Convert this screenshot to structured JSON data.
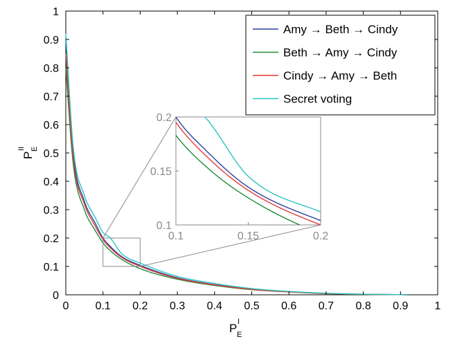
{
  "chart_data": {
    "type": "line",
    "title": "",
    "xlabel": {
      "main": "P",
      "sub": "E",
      "sup": "I"
    },
    "ylabel": {
      "main": "P",
      "sub": "E",
      "sup": "II"
    },
    "xlim": [
      0,
      1
    ],
    "ylim": [
      0,
      1
    ],
    "xticks": [
      "0",
      "0.1",
      "0.2",
      "0.3",
      "0.4",
      "0.5",
      "0.6",
      "0.7",
      "0.8",
      "0.9",
      "1"
    ],
    "yticks": [
      "0",
      "0.1",
      "0.2",
      "0.3",
      "0.4",
      "0.5",
      "0.6",
      "0.7",
      "0.8",
      "0.9",
      "1"
    ],
    "grid": false,
    "legend_position": "top-right",
    "series": [
      {
        "name": "Amy → Beth → Cindy",
        "color": "#2e3f9e",
        "x": [
          0.0,
          0.02,
          0.05,
          0.08,
          0.1,
          0.12,
          0.15,
          0.2,
          0.3,
          0.4,
          0.5,
          0.6,
          0.7,
          0.8,
          0.9,
          0.92
        ],
        "y": [
          0.9,
          0.5,
          0.33,
          0.25,
          0.2,
          0.17,
          0.135,
          0.104,
          0.06,
          0.036,
          0.02,
          0.011,
          0.005,
          0.002,
          0.0005,
          0.0
        ]
      },
      {
        "name": "Beth → Amy → Cindy",
        "color": "#1f8a3c",
        "x": [
          0.0,
          0.02,
          0.05,
          0.08,
          0.1,
          0.12,
          0.15,
          0.2,
          0.3,
          0.4,
          0.5,
          0.6,
          0.7,
          0.8,
          0.9,
          0.92
        ],
        "y": [
          0.8,
          0.46,
          0.3,
          0.225,
          0.183,
          0.155,
          0.125,
          0.092,
          0.055,
          0.033,
          0.018,
          0.01,
          0.004,
          0.0015,
          0.0004,
          0.0
        ]
      },
      {
        "name": "Cindy → Amy → Beth",
        "color": "#e23a32",
        "x": [
          0.0,
          0.02,
          0.05,
          0.08,
          0.1,
          0.12,
          0.15,
          0.2,
          0.3,
          0.4,
          0.5,
          0.6,
          0.7,
          0.8,
          0.9,
          0.92
        ],
        "y": [
          0.85,
          0.48,
          0.32,
          0.24,
          0.195,
          0.165,
          0.132,
          0.1,
          0.058,
          0.035,
          0.019,
          0.0105,
          0.0045,
          0.0018,
          0.0005,
          0.0
        ]
      },
      {
        "name": "Secret voting",
        "color": "#2cc3c3",
        "x": [
          0.0,
          0.02,
          0.05,
          0.08,
          0.1,
          0.12,
          0.15,
          0.2,
          0.3,
          0.4,
          0.5,
          0.6,
          0.7,
          0.8,
          0.9,
          0.92
        ],
        "y": [
          0.92,
          0.52,
          0.35,
          0.27,
          0.22,
          0.2,
          0.145,
          0.112,
          0.065,
          0.04,
          0.022,
          0.012,
          0.0055,
          0.0022,
          0.0006,
          0.0
        ]
      }
    ],
    "inset": {
      "xlim": [
        0.1,
        0.2
      ],
      "ylim": [
        0.1,
        0.2
      ],
      "xticks": [
        "0.1",
        "0.15",
        "0.2"
      ],
      "yticks": [
        "0.1",
        "0.15",
        "0.2"
      ],
      "tick_color": "#8a8a8a"
    }
  }
}
